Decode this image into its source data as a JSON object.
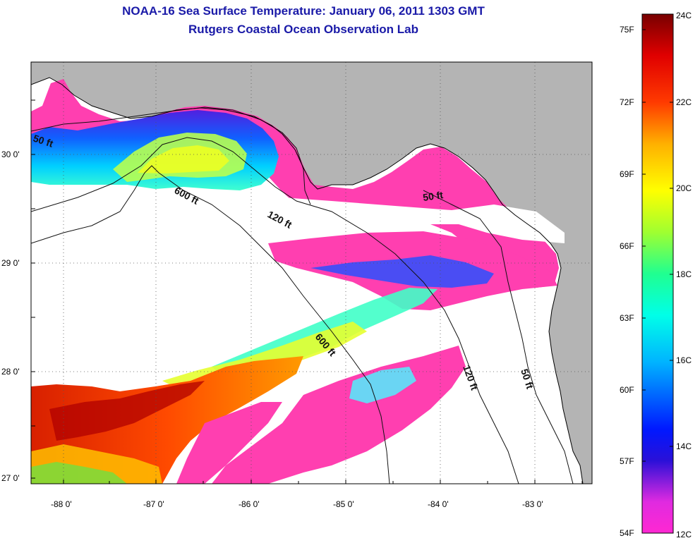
{
  "title": {
    "line1": "NOAA-16 Sea Surface Temperature:  January 06, 2011 1303 GMT",
    "line2": "Rutgers Coastal Ocean Observation Lab"
  },
  "map": {
    "lon_labels": [
      "-88 0'",
      "-87 0'",
      "-86 0'",
      "-85 0'",
      "-84 0'",
      "-83 0'"
    ],
    "lat_labels": [
      "30 0'",
      "29 0'",
      "28 0'",
      "27 0'"
    ],
    "contour_labels": [
      "50 ft",
      "600 ft",
      "120 ft",
      "50 ft",
      "600 ft",
      "120 ft",
      "50 ft"
    ],
    "land_color": "#b4b4b4",
    "cloud_color": "#ffffff"
  },
  "colorbar": {
    "fahrenheit_labels": [
      "75F",
      "72F",
      "69F",
      "66F",
      "63F",
      "60F",
      "57F",
      "54F"
    ],
    "celsius_labels": [
      "24C",
      "22C",
      "20C",
      "18C",
      "16C",
      "14C",
      "12C"
    ],
    "range_c": [
      12,
      24
    ],
    "range_f": [
      54,
      75
    ]
  }
}
